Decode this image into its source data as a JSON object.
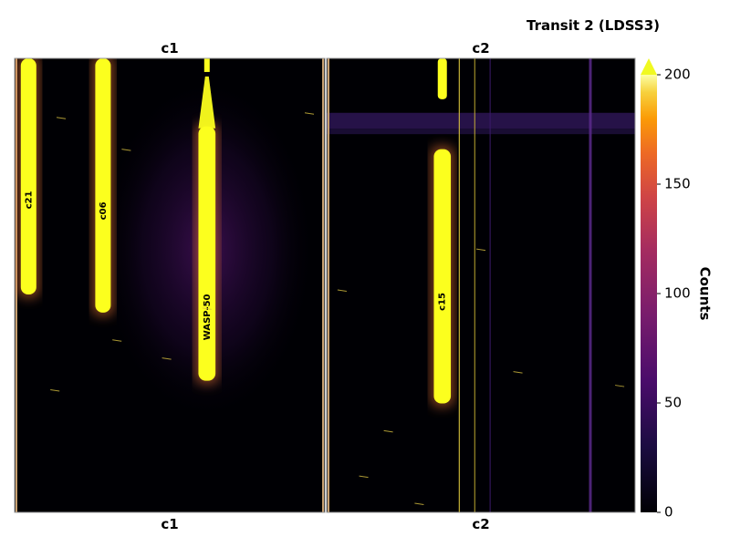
{
  "chart_data": {
    "type": "heatmap",
    "title": "Transit 2 (LDSS3)",
    "panels": [
      {
        "id": "c1",
        "top_label": "c1",
        "bottom_label": "c1",
        "traces": [
          {
            "label": "c21",
            "center": 0.045,
            "width": 0.05,
            "y_start": 0.0,
            "y_end": 0.52
          },
          {
            "label": "c06",
            "center": 0.285,
            "width": 0.05,
            "y_start": 0.0,
            "y_end": 0.56
          },
          {
            "label": "WASP-50",
            "center": 0.62,
            "width": 0.055,
            "y_start": 0.15,
            "y_end": 0.71
          }
        ]
      },
      {
        "id": "c2",
        "top_label": "c2",
        "bottom_label": "c2",
        "traces": [
          {
            "label": "c15",
            "center": 0.375,
            "width": 0.055,
            "y_start": 0.2,
            "y_end": 0.76
          }
        ]
      }
    ],
    "colorbar": {
      "label": "Counts",
      "min": 0,
      "max": 200,
      "ticks": [
        0,
        50,
        100,
        150,
        200
      ],
      "extend": "max",
      "colormap": "plasma",
      "extend_color": "#f0f921"
    },
    "colors": {
      "background": "#000004",
      "trace": "#fcff1e",
      "frame": "#999999"
    }
  }
}
